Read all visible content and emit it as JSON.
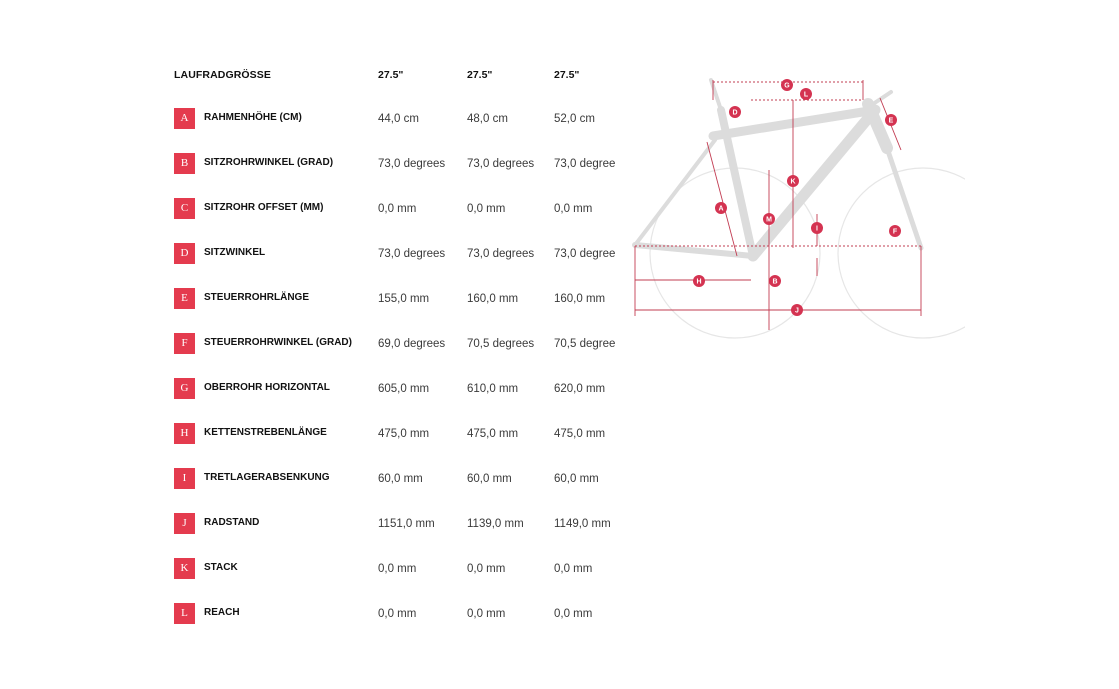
{
  "table": {
    "header_label": "LAUFRADGRÖSSE",
    "sizes": [
      "27.5\"",
      "27.5\"",
      "27.5\""
    ],
    "rows": [
      {
        "letter": "A",
        "label": "RAHMENHÖHE (CM)",
        "values": [
          "44,0 cm",
          "48,0 cm",
          "52,0 cm"
        ]
      },
      {
        "letter": "B",
        "label": "SITZROHRWINKEL (GRAD)",
        "values": [
          "73,0 degrees",
          "73,0 degrees",
          "73,0 degree"
        ]
      },
      {
        "letter": "C",
        "label": "SITZROHR OFFSET (MM)",
        "values": [
          "0,0 mm",
          "0,0 mm",
          "0,0 mm"
        ]
      },
      {
        "letter": "D",
        "label": "SITZWINKEL",
        "values": [
          "73,0 degrees",
          "73,0 degrees",
          "73,0 degree"
        ]
      },
      {
        "letter": "E",
        "label": "STEUERROHRLÄNGE",
        "values": [
          "155,0 mm",
          "160,0 mm",
          "160,0 mm"
        ]
      },
      {
        "letter": "F",
        "label": "STEUERROHRWINKEL (GRAD)",
        "values": [
          "69,0 degrees",
          "70,5 degrees",
          "70,5 degree"
        ]
      },
      {
        "letter": "G",
        "label": "OBERROHR HORIZONTAL",
        "values": [
          "605,0 mm",
          "610,0 mm",
          "620,0 mm"
        ]
      },
      {
        "letter": "H",
        "label": "KETTENSTREBENLÄNGE",
        "values": [
          "475,0 mm",
          "475,0 mm",
          "475,0 mm"
        ]
      },
      {
        "letter": "I",
        "label": "TRETLAGERABSENKUNG",
        "values": [
          "60,0 mm",
          "60,0 mm",
          "60,0 mm"
        ]
      },
      {
        "letter": "J",
        "label": "RADSTAND",
        "values": [
          "1151,0 mm",
          "1139,0 mm",
          "1149,0 mm"
        ]
      },
      {
        "letter": "K",
        "label": "STACK",
        "values": [
          "0,0 mm",
          "0,0 mm",
          "0,0 mm"
        ]
      },
      {
        "letter": "L",
        "label": "REACH",
        "values": [
          "0,0 mm",
          "0,0 mm",
          "0,0 mm"
        ]
      }
    ]
  },
  "diagram": {
    "labels": [
      "G",
      "L",
      "D",
      "E",
      "K",
      "A",
      "M",
      "I",
      "F",
      "H",
      "B",
      "J"
    ]
  },
  "colors": {
    "accent": "#e43b4e",
    "frame": "#d8d8d8",
    "wheel": "#e3e3e3"
  }
}
